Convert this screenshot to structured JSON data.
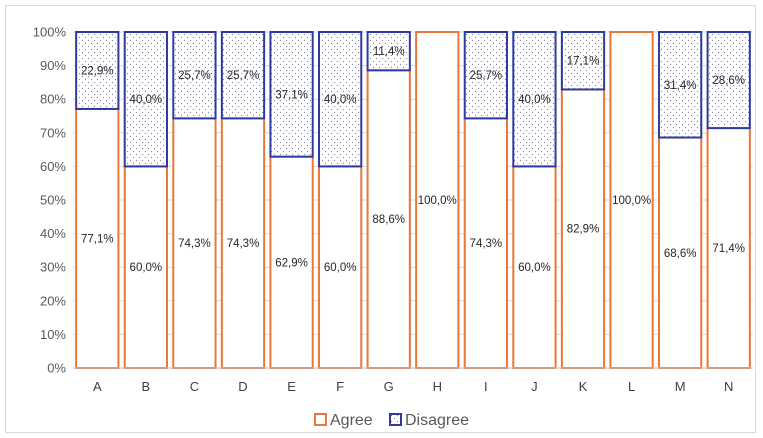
{
  "chart_data": {
    "type": "bar",
    "stacked": true,
    "categories": [
      "A",
      "B",
      "C",
      "D",
      "E",
      "F",
      "G",
      "H",
      "I",
      "J",
      "K",
      "L",
      "M",
      "N"
    ],
    "series": [
      {
        "name": "Agree",
        "color": "#E8773A",
        "fill": "none",
        "values": [
          77.1,
          60.0,
          74.3,
          74.3,
          62.9,
          60.0,
          88.6,
          100.0,
          74.3,
          60.0,
          82.9,
          100.0,
          68.6,
          71.4
        ],
        "labels": [
          "77,1%",
          "60,0%",
          "74,3%",
          "74,3%",
          "62,9%",
          "60,0%",
          "88,6%",
          "100,0%",
          "74,3%",
          "60,0%",
          "82,9%",
          "100,0%",
          "68,6%",
          "71,4%"
        ]
      },
      {
        "name": "Disagree",
        "color": "#2E3A9E",
        "fill": "dotted",
        "values": [
          22.9,
          40.0,
          25.7,
          25.7,
          37.1,
          40.0,
          11.4,
          0,
          25.7,
          40.0,
          17.1,
          0,
          31.4,
          28.6
        ],
        "labels": [
          "22,9%",
          "40,0%",
          "25,7%",
          "25,7%",
          "37,1%",
          "40,0%",
          "11,4%",
          "",
          "25,7%",
          "40,0%",
          "17,1%",
          "",
          "31,4%",
          "28,6%"
        ]
      }
    ],
    "yticks": [
      "0%",
      "10%",
      "20%",
      "30%",
      "40%",
      "50%",
      "60%",
      "70%",
      "80%",
      "90%",
      "100%"
    ],
    "ylim": [
      0,
      100
    ],
    "grid": true,
    "legend_position": "bottom"
  }
}
